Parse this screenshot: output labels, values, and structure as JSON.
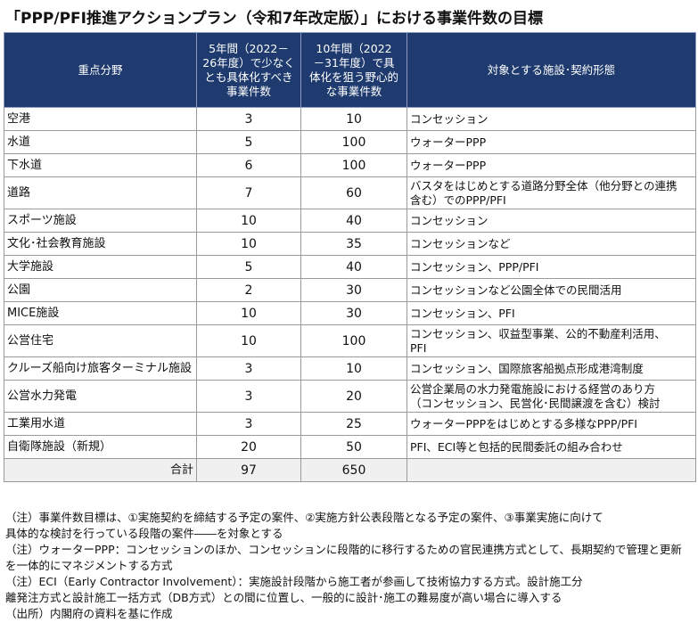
{
  "title": "「PPP/PFI推進アクションプラン（令和7年改定版）」における事業件数の目標",
  "headers": {
    "field": "重点分野",
    "target5": [
      "5年間（2022－",
      "26年度）で少なく",
      "とも具体化すべき",
      "事業件数"
    ],
    "target10": [
      "10年間（2022",
      "－31年度）で具",
      "体化を狙う野心的",
      "な事業件数"
    ],
    "scheme": "対象とする施設･契約形態"
  },
  "rows": [
    {
      "field": "空港",
      "five": "3",
      "ten": "10",
      "desc": [
        "コンセッション"
      ]
    },
    {
      "field": "水道",
      "five": "5",
      "ten": "100",
      "desc": [
        "ウォーターPPP"
      ]
    },
    {
      "field": "下水道",
      "five": "6",
      "ten": "100",
      "desc": [
        "ウォーターPPP"
      ]
    },
    {
      "field": "道路",
      "five": "7",
      "ten": "60",
      "desc": [
        "バスタをはじめとする道路分野全体（他分野との連携",
        "含む）でのPPP/PFI"
      ]
    },
    {
      "field": "スポーツ施設",
      "five": "10",
      "ten": "40",
      "desc": [
        "コンセッション"
      ]
    },
    {
      "field": "文化･社会教育施設",
      "five": "10",
      "ten": "35",
      "desc": [
        "コンセッションなど"
      ]
    },
    {
      "field": "大学施設",
      "five": "5",
      "ten": "40",
      "desc": [
        "コンセッション、PPP/PFI"
      ]
    },
    {
      "field": "公園",
      "five": "2",
      "ten": "30",
      "desc": [
        "コンセッションなど公園全体での民間活用"
      ]
    },
    {
      "field": "MICE施設",
      "five": "10",
      "ten": "30",
      "desc": [
        "コンセッション、PFI"
      ]
    },
    {
      "field": "公営住宅",
      "five": "10",
      "ten": "100",
      "desc": [
        "コンセッション、収益型事業、公的不動産利活用、",
        "PFI"
      ]
    },
    {
      "field": "クルーズ船向け旅客ターミナル施設",
      "five": "3",
      "ten": "10",
      "desc": [
        "コンセッション、国際旅客船拠点形成港湾制度"
      ]
    },
    {
      "field": "公営水力発電",
      "five": "3",
      "ten": "20",
      "desc": [
        "公営企業局の水力発電施設における経営のあり方",
        "（コンセッション、民営化･民間譲渡を含む）検討"
      ]
    },
    {
      "field": "工業用水道",
      "five": "3",
      "ten": "25",
      "desc": [
        "ウォーターPPPをはじめとする多様なPPP/PFI"
      ]
    },
    {
      "field": "自衛隊施設（新規）",
      "five": "20",
      "ten": "50",
      "desc": [
        "PFI、ECI等と包括的民間委託の組み合わせ"
      ]
    }
  ],
  "total": {
    "label": "合計",
    "five": "97",
    "ten": "650"
  },
  "notes": [
    "（注）事業件数目標は、①実施契約を締結する予定の案件、②実施方針公表段階となる予定の案件、③事業実施に向けて",
    "具体的な検討を行っている段階の案件――を対象とする",
    "（注）ウォーターPPP：コンセッションのほか、コンセッションに段階的に移行するための官民連携方式として、長期契約で管理と更新",
    "を一体的にマネジメントする方式",
    "（注）ECI（Early Contractor Involvement）：実施設計段階から施工者が参画して技術協力する方式。設計施工分",
    "離発注方式と設計施工一括方式（DB方式）との間に位置し、一般的に設計･施工の難易度が高い場合に導入する",
    "（出所）内閣府の資料を基に作成"
  ]
}
